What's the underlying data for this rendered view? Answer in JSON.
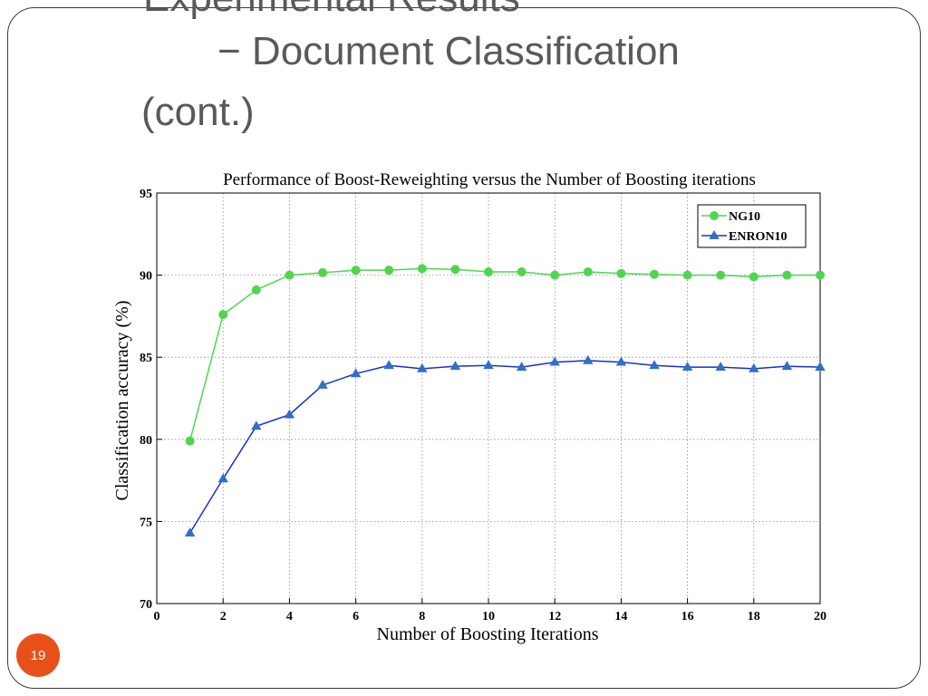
{
  "slide": {
    "title_line_1": "Experimental Results",
    "title_line_2": "− Document Classification",
    "title_line_3": "(cont.)",
    "page_number": "19"
  },
  "colors": {
    "ng10": "#4fd64f",
    "enron10": "#1a2fd0",
    "enron10_marker": "#2f6fc8",
    "page_badge": "#e8501a"
  },
  "chart_data": {
    "type": "line",
    "title": "Performance of Boost-Reweighting versus the Number of Boosting iterations",
    "xlabel": "Number of Boosting Iterations",
    "ylabel": "Classification accuracy (%)",
    "xlim": [
      0,
      20
    ],
    "ylim": [
      70,
      95
    ],
    "xticks": [
      0,
      2,
      4,
      6,
      8,
      10,
      12,
      14,
      16,
      18,
      20
    ],
    "yticks": [
      70,
      75,
      80,
      85,
      90,
      95
    ],
    "grid": true,
    "legend_position": "top-right",
    "x": [
      1,
      2,
      3,
      4,
      5,
      6,
      7,
      8,
      9,
      10,
      11,
      12,
      13,
      14,
      15,
      16,
      17,
      18,
      19,
      20
    ],
    "series": [
      {
        "name": "NG10",
        "marker": "circle",
        "values": [
          79.9,
          87.6,
          89.1,
          90.0,
          90.15,
          90.3,
          90.3,
          90.4,
          90.35,
          90.2,
          90.2,
          90.0,
          90.2,
          90.1,
          90.05,
          90.0,
          90.0,
          89.9,
          90.0,
          90.0
        ]
      },
      {
        "name": "ENRON10",
        "marker": "triangle",
        "values": [
          74.3,
          77.6,
          80.8,
          81.5,
          83.3,
          84.0,
          84.5,
          84.3,
          84.45,
          84.5,
          84.4,
          84.7,
          84.8,
          84.7,
          84.5,
          84.4,
          84.4,
          84.3,
          84.45,
          84.4
        ]
      }
    ]
  }
}
